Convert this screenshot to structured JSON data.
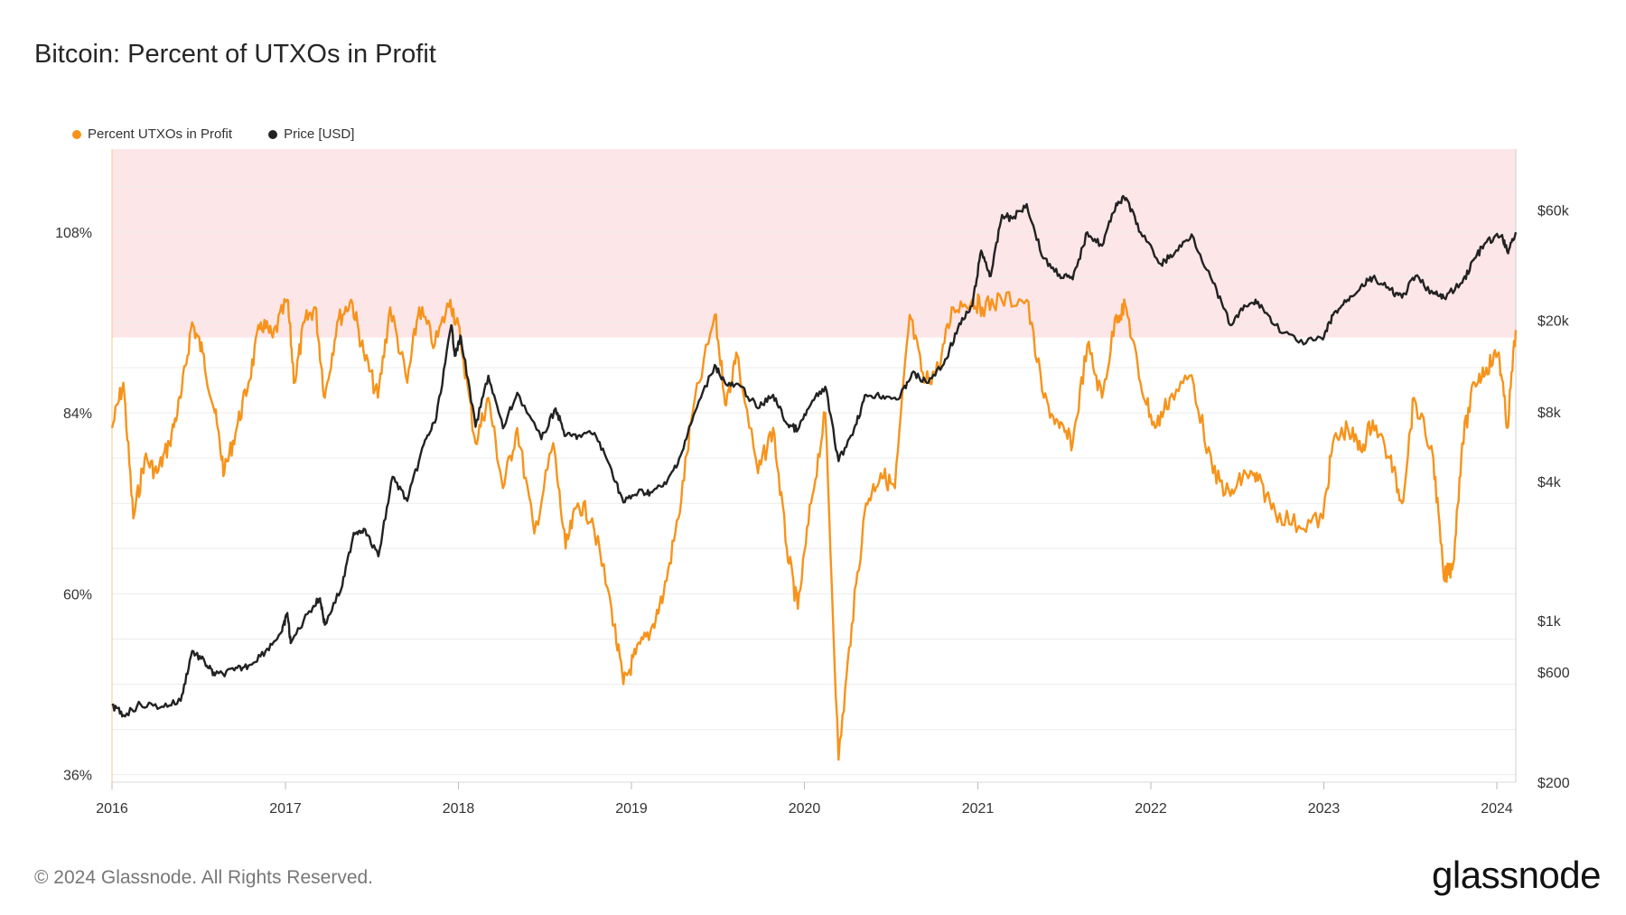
{
  "title": "Bitcoin: Percent of UTXOs in Profit",
  "footer": "© 2024 Glassnode. All Rights Reserved.",
  "brand": "glassnode",
  "legend": [
    {
      "label": "Percent UTXOs in Profit",
      "color": "#f7931a"
    },
    {
      "label": "Price [USD]",
      "color": "#222222"
    }
  ],
  "colors": {
    "profit": "#f7931a",
    "price": "#222222",
    "band": "#fde6e8"
  },
  "chart_data": {
    "type": "line",
    "title": "Bitcoin: Percent of UTXOs in Profit",
    "x_ticks": [
      "2016",
      "2017",
      "2018",
      "2019",
      "2020",
      "2021",
      "2022",
      "2023",
      "2024"
    ],
    "x_range": [
      "2016-01-01",
      "2024-02-10"
    ],
    "left_axis": {
      "ticks": [
        "36%",
        "60%",
        "84%",
        "108%"
      ],
      "values": [
        36,
        60,
        84,
        108
      ],
      "range": [
        35,
        119
      ]
    },
    "right_axis": {
      "ticks": [
        "$200",
        "$600",
        "$1k",
        "$4k",
        "$8k",
        "$20k",
        "$60k"
      ],
      "values": [
        200,
        600,
        1000,
        4000,
        8000,
        20000,
        60000
      ],
      "scale": "log",
      "range": [
        200,
        110000
      ]
    },
    "highlight_band": {
      "from": 94,
      "to": 119,
      "axis": "left"
    },
    "series": [
      {
        "name": "Percent UTXOs in Profit",
        "axis": "left",
        "points": [
          [
            "2016-01-01",
            82
          ],
          [
            "2016-01-25",
            88
          ],
          [
            "2016-02-15",
            70
          ],
          [
            "2016-03-10",
            78
          ],
          [
            "2016-04-05",
            76
          ],
          [
            "2016-05-01",
            80
          ],
          [
            "2016-05-25",
            86
          ],
          [
            "2016-06-18",
            96
          ],
          [
            "2016-07-10",
            92
          ],
          [
            "2016-08-05",
            84
          ],
          [
            "2016-08-25",
            76
          ],
          [
            "2016-09-20",
            82
          ],
          [
            "2016-10-15",
            88
          ],
          [
            "2016-11-10",
            96
          ],
          [
            "2016-12-05",
            94
          ],
          [
            "2017-01-05",
            99
          ],
          [
            "2017-01-20",
            88
          ],
          [
            "2017-02-10",
            96
          ],
          [
            "2017-03-05",
            98
          ],
          [
            "2017-03-25",
            86
          ],
          [
            "2017-04-20",
            96
          ],
          [
            "2017-05-20",
            99
          ],
          [
            "2017-06-15",
            92
          ],
          [
            "2017-07-15",
            86
          ],
          [
            "2017-08-10",
            98
          ],
          [
            "2017-09-15",
            88
          ],
          [
            "2017-10-10",
            98
          ],
          [
            "2017-11-12",
            93
          ],
          [
            "2017-12-15",
            99
          ],
          [
            "2018-01-05",
            94
          ],
          [
            "2018-02-06",
            80
          ],
          [
            "2018-03-05",
            86
          ],
          [
            "2018-04-05",
            74
          ],
          [
            "2018-05-05",
            82
          ],
          [
            "2018-06-10",
            68
          ],
          [
            "2018-07-20",
            80
          ],
          [
            "2018-08-15",
            66
          ],
          [
            "2018-09-10",
            72
          ],
          [
            "2018-10-10",
            70
          ],
          [
            "2018-11-20",
            58
          ],
          [
            "2018-12-15",
            48
          ],
          [
            "2019-01-10",
            52
          ],
          [
            "2019-02-10",
            55
          ],
          [
            "2019-03-10",
            60
          ],
          [
            "2019-04-10",
            70
          ],
          [
            "2019-05-10",
            84
          ],
          [
            "2019-06-26",
            97
          ],
          [
            "2019-07-20",
            85
          ],
          [
            "2019-08-10",
            92
          ],
          [
            "2019-09-25",
            76
          ],
          [
            "2019-10-27",
            82
          ],
          [
            "2019-11-25",
            66
          ],
          [
            "2019-12-18",
            58
          ],
          [
            "2020-01-15",
            72
          ],
          [
            "2020-02-14",
            84
          ],
          [
            "2020-03-13",
            38
          ],
          [
            "2020-04-10",
            56
          ],
          [
            "2020-05-10",
            72
          ],
          [
            "2020-06-10",
            76
          ],
          [
            "2020-07-10",
            74
          ],
          [
            "2020-08-10",
            97
          ],
          [
            "2020-09-10",
            88
          ],
          [
            "2020-10-10",
            90
          ],
          [
            "2020-11-10",
            98
          ],
          [
            "2020-12-20",
            99
          ],
          [
            "2021-01-10",
            98
          ],
          [
            "2021-02-20",
            99
          ],
          [
            "2021-04-14",
            99
          ],
          [
            "2021-05-20",
            86
          ],
          [
            "2021-06-22",
            82
          ],
          [
            "2021-07-20",
            80
          ],
          [
            "2021-08-20",
            93
          ],
          [
            "2021-09-20",
            86
          ],
          [
            "2021-10-20",
            97
          ],
          [
            "2021-11-10",
            98
          ],
          [
            "2021-12-10",
            88
          ],
          [
            "2022-01-10",
            82
          ],
          [
            "2022-02-10",
            86
          ],
          [
            "2022-03-28",
            89
          ],
          [
            "2022-05-12",
            76
          ],
          [
            "2022-06-18",
            73
          ],
          [
            "2022-07-20",
            76
          ],
          [
            "2022-08-15",
            75
          ],
          [
            "2022-09-20",
            71
          ],
          [
            "2022-11-09",
            69
          ],
          [
            "2022-12-30",
            70
          ],
          [
            "2023-01-20",
            80
          ],
          [
            "2023-02-20",
            82
          ],
          [
            "2023-03-20",
            79
          ],
          [
            "2023-04-14",
            83
          ],
          [
            "2023-05-20",
            78
          ],
          [
            "2023-06-15",
            72
          ],
          [
            "2023-07-10",
            86
          ],
          [
            "2023-08-20",
            78
          ],
          [
            "2023-09-11",
            62
          ],
          [
            "2023-10-01",
            64
          ],
          [
            "2023-10-20",
            80
          ],
          [
            "2023-11-15",
            88
          ],
          [
            "2023-12-10",
            90
          ],
          [
            "2024-01-05",
            92
          ],
          [
            "2024-01-23",
            82
          ],
          [
            "2024-02-10",
            95
          ]
        ]
      },
      {
        "name": "Price [USD]",
        "axis": "right",
        "points": [
          [
            "2016-01-01",
            430
          ],
          [
            "2016-01-25",
            390
          ],
          [
            "2016-03-01",
            435
          ],
          [
            "2016-04-15",
            425
          ],
          [
            "2016-05-25",
            450
          ],
          [
            "2016-06-18",
            740
          ],
          [
            "2016-07-15",
            660
          ],
          [
            "2016-08-05",
            580
          ],
          [
            "2016-09-15",
            610
          ],
          [
            "2016-10-15",
            640
          ],
          [
            "2016-11-20",
            740
          ],
          [
            "2016-12-25",
            900
          ],
          [
            "2017-01-05",
            1080
          ],
          [
            "2017-01-12",
            800
          ],
          [
            "2017-02-20",
            1100
          ],
          [
            "2017-03-15",
            1250
          ],
          [
            "2017-03-25",
            960
          ],
          [
            "2017-05-01",
            1420
          ],
          [
            "2017-05-25",
            2400
          ],
          [
            "2017-06-15",
            2500
          ],
          [
            "2017-07-16",
            1900
          ],
          [
            "2017-08-15",
            4200
          ],
          [
            "2017-09-15",
            3300
          ],
          [
            "2017-10-20",
            5800
          ],
          [
            "2017-11-15",
            7500
          ],
          [
            "2017-12-17",
            19000
          ],
          [
            "2017-12-25",
            14000
          ],
          [
            "2018-01-06",
            17000
          ],
          [
            "2018-02-06",
            6900
          ],
          [
            "2018-03-05",
            11500
          ],
          [
            "2018-04-05",
            6800
          ],
          [
            "2018-05-05",
            9700
          ],
          [
            "2018-06-25",
            6100
          ],
          [
            "2018-07-25",
            8300
          ],
          [
            "2018-08-15",
            6300
          ],
          [
            "2018-09-10",
            6300
          ],
          [
            "2018-10-15",
            6500
          ],
          [
            "2018-11-20",
            4500
          ],
          [
            "2018-12-15",
            3250
          ],
          [
            "2019-01-15",
            3600
          ],
          [
            "2019-02-10",
            3600
          ],
          [
            "2019-03-15",
            3900
          ],
          [
            "2019-04-15",
            5200
          ],
          [
            "2019-05-15",
            8000
          ],
          [
            "2019-06-26",
            12800
          ],
          [
            "2019-07-20",
            10500
          ],
          [
            "2019-08-20",
            10300
          ],
          [
            "2019-09-25",
            8300
          ],
          [
            "2019-10-27",
            9500
          ],
          [
            "2019-11-25",
            7100
          ],
          [
            "2019-12-18",
            6700
          ],
          [
            "2020-01-15",
            8700
          ],
          [
            "2020-02-14",
            10300
          ],
          [
            "2020-03-13",
            4900
          ],
          [
            "2020-04-15",
            6800
          ],
          [
            "2020-05-10",
            9500
          ],
          [
            "2020-06-15",
            9400
          ],
          [
            "2020-07-20",
            9200
          ],
          [
            "2020-08-15",
            11800
          ],
          [
            "2020-09-15",
            10700
          ],
          [
            "2020-10-21",
            12900
          ],
          [
            "2020-11-20",
            18500
          ],
          [
            "2020-12-20",
            23000
          ],
          [
            "2021-01-08",
            40000
          ],
          [
            "2021-01-28",
            31000
          ],
          [
            "2021-02-21",
            57000
          ],
          [
            "2021-03-15",
            55000
          ],
          [
            "2021-04-14",
            63500
          ],
          [
            "2021-05-19",
            37000
          ],
          [
            "2021-06-22",
            31500
          ],
          [
            "2021-07-20",
            30000
          ],
          [
            "2021-08-20",
            48000
          ],
          [
            "2021-09-20",
            42000
          ],
          [
            "2021-10-20",
            64000
          ],
          [
            "2021-11-10",
            67500
          ],
          [
            "2021-12-10",
            48000
          ],
          [
            "2022-01-22",
            35000
          ],
          [
            "2022-02-20",
            39000
          ],
          [
            "2022-03-28",
            47000
          ],
          [
            "2022-05-12",
            29000
          ],
          [
            "2022-06-18",
            19000
          ],
          [
            "2022-07-20",
            23000
          ],
          [
            "2022-08-15",
            24000
          ],
          [
            "2022-09-20",
            19000
          ],
          [
            "2022-11-09",
            16000
          ],
          [
            "2022-12-30",
            16500
          ],
          [
            "2023-01-20",
            21000
          ],
          [
            "2023-02-20",
            24500
          ],
          [
            "2023-03-20",
            28000
          ],
          [
            "2023-04-14",
            30500
          ],
          [
            "2023-05-20",
            27000
          ],
          [
            "2023-06-15",
            25000
          ],
          [
            "2023-07-13",
            31000
          ],
          [
            "2023-08-20",
            26000
          ],
          [
            "2023-09-11",
            25000
          ],
          [
            "2023-10-20",
            29000
          ],
          [
            "2023-11-15",
            37000
          ],
          [
            "2023-12-10",
            43500
          ],
          [
            "2024-01-11",
            46500
          ],
          [
            "2024-01-23",
            39500
          ],
          [
            "2024-02-10",
            48000
          ]
        ]
      }
    ]
  }
}
